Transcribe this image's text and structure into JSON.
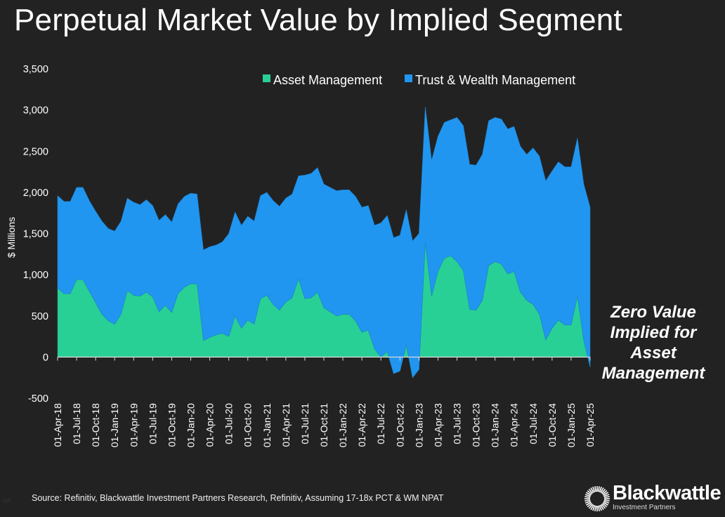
{
  "title": "Perpetual Market Value by Implied Segment",
  "annotation": [
    "Zero Value",
    "Implied for",
    "Asset",
    "Management"
  ],
  "source": "Source: Refinitiv, Blackwattle Investment Partners Research, Refinitiv, Assuming 17-18x PCT & WM NPAT",
  "page_number": "116",
  "logo": {
    "name": "Blackwattle",
    "subtitle": "Investment Partners"
  },
  "colors": {
    "background": "#222222",
    "asset_management": "#29D095",
    "trust_wealth": "#2196F0",
    "text": "#FFFFFF"
  },
  "chart_data": {
    "type": "area",
    "stacked": true,
    "title": "Perpetual Market Value by Implied Segment",
    "xlabel": "",
    "ylabel": "$ Millions",
    "ylim": [
      -500,
      3500
    ],
    "yticks": [
      "-500",
      "0",
      "500",
      "1,000",
      "1,500",
      "2,000",
      "2,500",
      "3,000",
      "3,500"
    ],
    "ytick_values": [
      -500,
      0,
      500,
      1000,
      1500,
      2000,
      2500,
      3000,
      3500
    ],
    "grid": false,
    "legend_position": "top-center",
    "xtick_labels": [
      "01-Apr-18",
      "01-Jul-18",
      "01-Oct-18",
      "01-Jan-19",
      "01-Apr-19",
      "01-Jul-19",
      "01-Oct-19",
      "01-Jan-20",
      "01-Apr-20",
      "01-Jul-20",
      "01-Oct-20",
      "01-Jan-21",
      "01-Apr-21",
      "01-Jul-21",
      "01-Oct-21",
      "01-Jan-22",
      "01-Apr-22",
      "01-Jul-22",
      "01-Oct-22",
      "01-Jan-23",
      "01-Apr-23",
      "01-Jul-23",
      "01-Oct-23",
      "01-Jan-24",
      "01-Apr-24",
      "01-Jul-24",
      "01-Oct-24",
      "01-Jan-25",
      "01-Apr-25"
    ],
    "x": [
      "01-Apr-18",
      "01-May-18",
      "01-Jun-18",
      "01-Jul-18",
      "01-Aug-18",
      "01-Sep-18",
      "01-Oct-18",
      "01-Nov-18",
      "01-Dec-18",
      "01-Jan-19",
      "01-Feb-19",
      "01-Mar-19",
      "01-Apr-19",
      "01-May-19",
      "01-Jun-19",
      "01-Jul-19",
      "01-Aug-19",
      "01-Sep-19",
      "01-Oct-19",
      "01-Nov-19",
      "01-Dec-19",
      "01-Jan-20",
      "01-Feb-20",
      "01-Mar-20",
      "01-Apr-20",
      "01-May-20",
      "01-Jun-20",
      "01-Jul-20",
      "01-Aug-20",
      "01-Sep-20",
      "01-Oct-20",
      "01-Nov-20",
      "01-Dec-20",
      "01-Jan-21",
      "01-Feb-21",
      "01-Mar-21",
      "01-Apr-21",
      "01-May-21",
      "01-Jun-21",
      "01-Jul-21",
      "01-Aug-21",
      "01-Sep-21",
      "01-Oct-21",
      "01-Nov-21",
      "01-Dec-21",
      "01-Jan-22",
      "01-Feb-22",
      "01-Mar-22",
      "01-Apr-22",
      "01-May-22",
      "01-Jun-22",
      "01-Jul-22",
      "01-Aug-22",
      "01-Sep-22",
      "01-Oct-22",
      "01-Nov-22",
      "01-Dec-22",
      "01-Jan-23",
      "01-Feb-23",
      "01-Mar-23",
      "01-Apr-23",
      "01-May-23",
      "01-Jun-23",
      "01-Jul-23",
      "01-Aug-23",
      "01-Sep-23",
      "01-Oct-23",
      "01-Nov-23",
      "01-Dec-23",
      "01-Jan-24",
      "01-Feb-24",
      "01-Mar-24",
      "01-Apr-24",
      "01-May-24",
      "01-Jun-24",
      "01-Jul-24",
      "01-Aug-24",
      "01-Sep-24",
      "01-Oct-24",
      "01-Nov-24",
      "01-Dec-24",
      "01-Jan-25",
      "01-Feb-25",
      "01-Mar-25",
      "01-Apr-25"
    ],
    "series": [
      {
        "name": "Asset Management",
        "color": "#29D095",
        "values": [
          840,
          770,
          770,
          940,
          940,
          800,
          660,
          520,
          440,
          400,
          520,
          810,
          750,
          740,
          790,
          730,
          550,
          630,
          540,
          770,
          850,
          890,
          890,
          200,
          240,
          270,
          290,
          250,
          500,
          350,
          450,
          400,
          710,
          750,
          640,
          570,
          670,
          720,
          950,
          710,
          720,
          790,
          600,
          550,
          500,
          520,
          520,
          440,
          300,
          330,
          100,
          0,
          70,
          -200,
          -170,
          150,
          -250,
          -150,
          1390,
          740,
          1040,
          1200,
          1230,
          1160,
          1050,
          580,
          570,
          690,
          1110,
          1160,
          1130,
          1010,
          1040,
          790,
          690,
          640,
          520,
          210,
          350,
          450,
          390,
          390,
          740,
          200,
          -120
        ]
      },
      {
        "name": "Trust & Wealth Management",
        "color": "#2196F0",
        "values": [
          1120,
          1120,
          1120,
          1120,
          1120,
          1100,
          1110,
          1130,
          1120,
          1130,
          1130,
          1120,
          1130,
          1110,
          1120,
          1110,
          1110,
          1100,
          1100,
          1090,
          1100,
          1100,
          1090,
          1100,
          1100,
          1090,
          1110,
          1250,
          1260,
          1250,
          1260,
          1250,
          1250,
          1250,
          1260,
          1260,
          1260,
          1260,
          1250,
          1500,
          1510,
          1510,
          1500,
          1510,
          1520,
          1510,
          1510,
          1510,
          1520,
          1510,
          1500,
          1630,
          1650,
          1650,
          1650,
          1640,
          1660,
          1650,
          1650,
          1650,
          1640,
          1650,
          1650,
          1750,
          1760,
          1760,
          1760,
          1770,
          1760,
          1750,
          1760,
          1760,
          1760,
          1770,
          1770,
          1900,
          1920,
          1930,
          1910,
          1920,
          1920,
          1920,
          1920,
          1900,
          1940
        ]
      }
    ]
  }
}
